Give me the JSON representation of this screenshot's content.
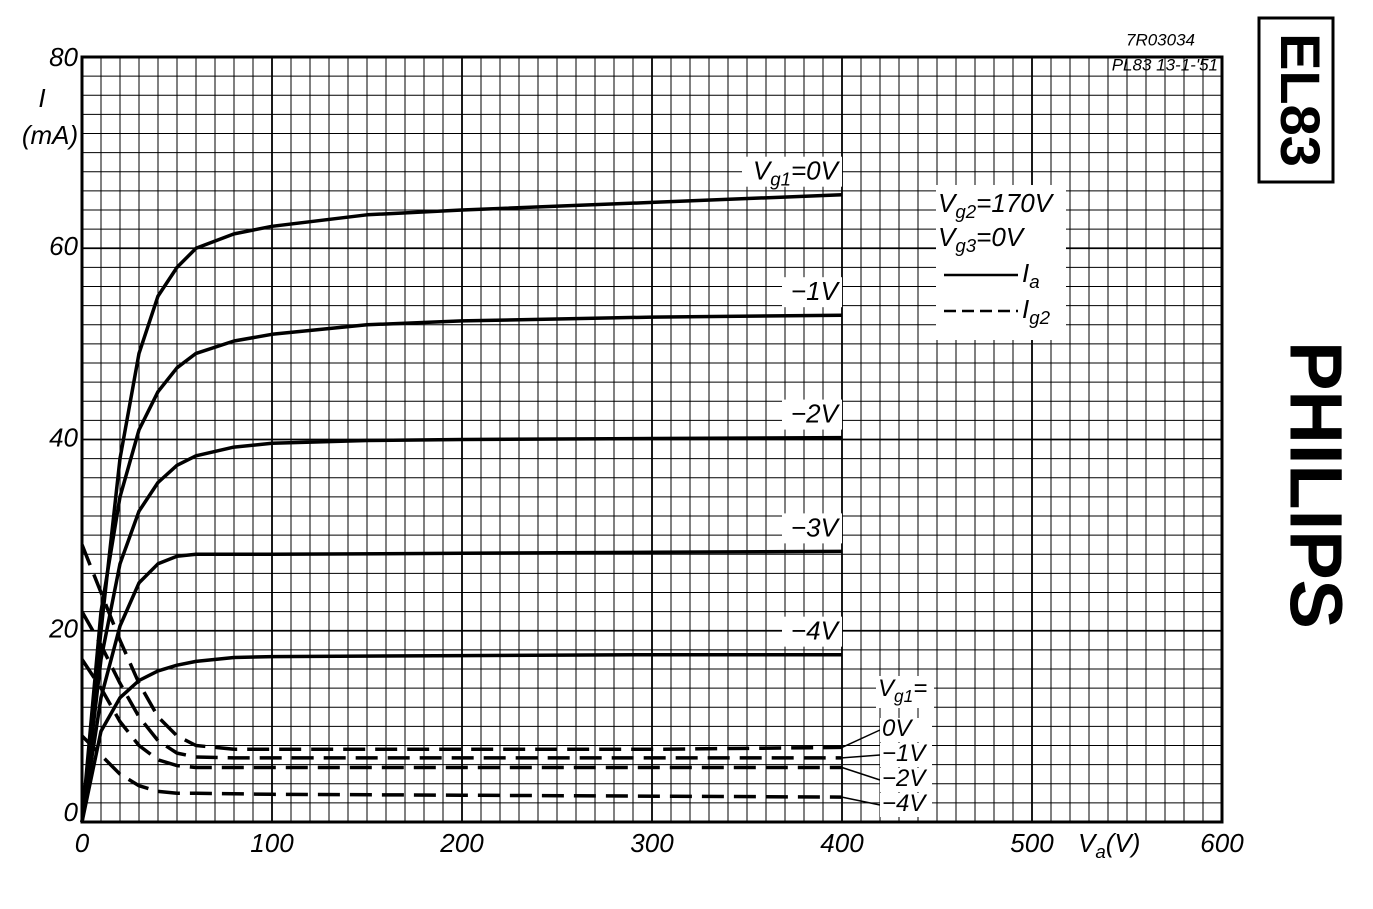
{
  "chart_data": {
    "type": "line",
    "header": {
      "code": "7R03034",
      "ref": "PL83  13-1-'51"
    },
    "tube": "EL83",
    "brand": "PHILIPS",
    "y_label": [
      "I",
      "(mA)"
    ],
    "x_label": [
      "V",
      "a",
      "(V)"
    ],
    "xlim": [
      0,
      600
    ],
    "ylim": [
      0,
      80
    ],
    "xticks": [
      0,
      100,
      200,
      300,
      400,
      500,
      600
    ],
    "yticks": [
      0,
      20,
      40,
      60,
      80
    ],
    "grid": true,
    "xgrid": [
      0,
      10,
      20,
      30,
      40,
      50,
      60,
      70,
      80,
      90,
      100,
      110,
      120,
      130,
      140,
      150,
      160,
      170,
      180,
      190,
      200,
      210,
      220,
      230,
      240,
      250,
      260,
      270,
      280,
      290,
      300,
      310,
      320,
      330,
      340,
      350,
      360,
      370,
      380,
      390,
      400,
      410,
      420,
      430,
      440,
      450,
      460,
      470,
      480,
      490,
      500,
      510,
      520,
      530,
      540,
      550,
      560,
      570,
      580,
      590,
      600
    ],
    "ygrid": [
      0,
      2,
      4,
      6,
      8,
      10,
      12,
      14,
      16,
      18,
      20,
      22,
      24,
      26,
      28,
      30,
      32,
      34,
      36,
      38,
      40,
      42,
      44,
      46,
      48,
      50,
      52,
      54,
      56,
      58,
      60,
      62,
      64,
      66,
      68,
      70,
      72,
      74,
      76,
      78,
      80
    ],
    "conditions": [
      [
        "V",
        "g2",
        "=170V"
      ],
      [
        "V",
        "g3",
        "=0V"
      ]
    ],
    "legend": [
      {
        "label": [
          "I",
          "a"
        ],
        "style": "solid"
      },
      {
        "label": [
          "I",
          "g2"
        ],
        "style": "dashed"
      }
    ],
    "dashed_title": [
      "V",
      "g1",
      "="
    ],
    "series": [
      {
        "label": [
          "V",
          "g1",
          "=0V"
        ],
        "style": "solid",
        "color": "#000000",
        "x": [
          0,
          10,
          20,
          30,
          40,
          50,
          60,
          80,
          100,
          150,
          200,
          300,
          400
        ],
        "values": [
          0,
          20,
          38,
          49,
          55,
          58,
          60,
          61.5,
          62.3,
          63.5,
          64,
          64.8,
          65.6
        ]
      },
      {
        "label": [
          "−1V"
        ],
        "style": "solid",
        "color": "#000000",
        "x": [
          0,
          10,
          20,
          30,
          40,
          50,
          60,
          80,
          100,
          150,
          200,
          300,
          400
        ],
        "values": [
          0,
          22,
          34,
          41,
          45,
          47.5,
          49,
          50.3,
          51,
          52,
          52.4,
          52.8,
          53
        ]
      },
      {
        "label": [
          "−2V"
        ],
        "style": "solid",
        "color": "#000000",
        "x": [
          0,
          10,
          20,
          30,
          40,
          50,
          60,
          80,
          100,
          150,
          200,
          300,
          400
        ],
        "values": [
          0,
          17,
          27,
          32.5,
          35.5,
          37.3,
          38.3,
          39.2,
          39.6,
          39.9,
          40,
          40.1,
          40.2
        ]
      },
      {
        "label": [
          "−3V"
        ],
        "style": "solid",
        "color": "#000000",
        "x": [
          0,
          10,
          20,
          30,
          40,
          50,
          60,
          80,
          100,
          200,
          300,
          400
        ],
        "values": [
          0,
          13,
          20.5,
          25,
          27,
          27.8,
          28,
          28,
          28,
          28.1,
          28.2,
          28.3
        ]
      },
      {
        "label": [
          "−4V"
        ],
        "style": "solid",
        "color": "#000000",
        "x": [
          0,
          10,
          20,
          30,
          40,
          50,
          60,
          80,
          100,
          200,
          300,
          400
        ],
        "values": [
          0,
          9.5,
          13,
          14.8,
          15.8,
          16.4,
          16.8,
          17.2,
          17.3,
          17.4,
          17.5,
          17.5
        ]
      },
      {
        "label": [
          "0V"
        ],
        "style": "dashed",
        "color": "#000000",
        "x": [
          0,
          10,
          20,
          30,
          40,
          50,
          60,
          80,
          100,
          200,
          300,
          400
        ],
        "values": [
          29,
          24,
          19,
          14.5,
          11,
          9,
          8,
          7.6,
          7.6,
          7.6,
          7.6,
          7.8
        ]
      },
      {
        "label": [
          "−1V"
        ],
        "style": "dashed",
        "color": "#000000",
        "x": [
          0,
          10,
          20,
          30,
          40,
          50,
          60,
          80,
          100,
          200,
          300,
          400
        ],
        "values": [
          22,
          18.5,
          14.5,
          11,
          8.5,
          7.2,
          6.8,
          6.7,
          6.7,
          6.7,
          6.7,
          6.7
        ]
      },
      {
        "label": [
          "−2V"
        ],
        "style": "dashed",
        "color": "#000000",
        "x": [
          0,
          10,
          20,
          30,
          40,
          50,
          60,
          100,
          200,
          400
        ],
        "values": [
          17,
          14,
          10.5,
          8,
          6.5,
          5.9,
          5.7,
          5.7,
          5.7,
          5.7
        ]
      },
      {
        "label": [
          "−4V"
        ],
        "style": "dashed",
        "color": "#000000",
        "x": [
          0,
          10,
          20,
          30,
          40,
          50,
          60,
          100,
          200,
          400
        ],
        "values": [
          9,
          7,
          5,
          3.8,
          3.2,
          3,
          3,
          2.9,
          2.8,
          2.6
        ]
      }
    ]
  }
}
